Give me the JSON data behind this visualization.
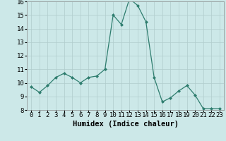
{
  "x": [
    0,
    1,
    2,
    3,
    4,
    5,
    6,
    7,
    8,
    9,
    10,
    11,
    12,
    13,
    14,
    15,
    16,
    17,
    18,
    19,
    20,
    21,
    22,
    23
  ],
  "y": [
    9.7,
    9.3,
    9.8,
    10.4,
    10.7,
    10.4,
    10.0,
    10.4,
    10.5,
    11.0,
    15.0,
    14.3,
    16.2,
    15.7,
    14.5,
    10.4,
    8.6,
    8.9,
    9.4,
    9.8,
    9.1,
    8.1,
    8.1,
    8.1
  ],
  "xlabel": "Humidex (Indice chaleur)",
  "ylim": [
    8,
    16
  ],
  "xlim": [
    -0.5,
    23.5
  ],
  "yticks": [
    8,
    9,
    10,
    11,
    12,
    13,
    14,
    15,
    16
  ],
  "xticks": [
    0,
    1,
    2,
    3,
    4,
    5,
    6,
    7,
    8,
    9,
    10,
    11,
    12,
    13,
    14,
    15,
    16,
    17,
    18,
    19,
    20,
    21,
    22,
    23
  ],
  "line_color": "#2e7d6e",
  "marker": "D",
  "marker_size": 2,
  "bg_color": "#cce8e8",
  "grid_color": "#b0cccc",
  "xlabel_fontsize": 7.5,
  "tick_fontsize": 6.5
}
